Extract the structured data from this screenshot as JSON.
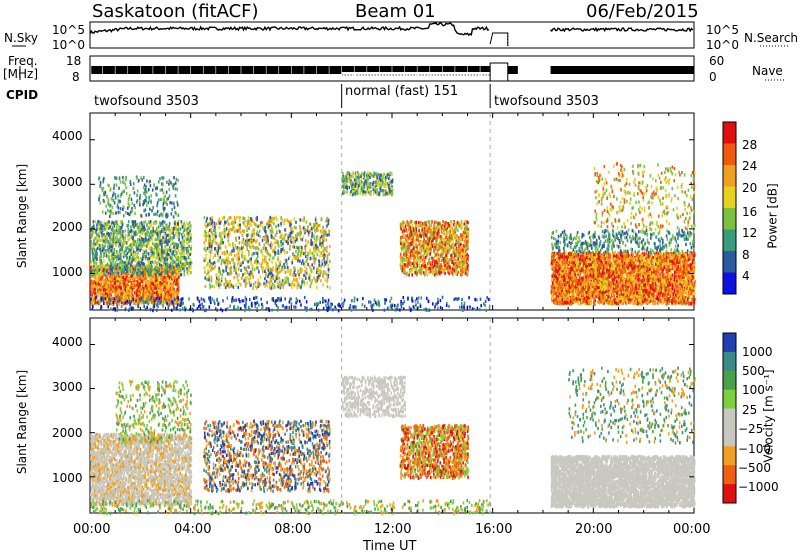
{
  "header": {
    "radar": "Saskatoon (fitACF)",
    "beam": "Beam 01",
    "date": "06/Feb/2015"
  },
  "left_labels": {
    "nsky": "N.Sky",
    "freq": "Freq.",
    "freq_unit": "[MHz]",
    "cpid": "CPID"
  },
  "right_labels": {
    "nsearch": "N.Search",
    "nave": "Nave"
  },
  "axes": {
    "noise_ticks_left": [
      "10^5",
      "10^0"
    ],
    "noise_ticks_right": [
      "10^5",
      "10^0"
    ],
    "freq_ticks": [
      "18",
      "8"
    ],
    "nave_ticks": [
      "60",
      "0"
    ],
    "range_ticks": [
      "1000",
      "2000",
      "3000",
      "4000"
    ],
    "time_ticks": [
      "00:00",
      "04:00",
      "08:00",
      "12:00",
      "16:00",
      "20:00",
      "00:00"
    ],
    "ylabel": "Slant Range [km]",
    "xlabel": "Time UT"
  },
  "cpid_segments": [
    {
      "label": "twofsound 3503",
      "start_hour": 0.0,
      "end_hour": 10.0
    },
    {
      "label": "normal (fast) 151",
      "start_hour": 10.0,
      "end_hour": 15.9
    },
    {
      "label": "twofsound 3503",
      "start_hour": 15.9,
      "end_hour": 24.0
    }
  ],
  "colorbars": {
    "power": {
      "label": "Power [dB]",
      "ticks": [
        "28",
        "24",
        "20",
        "16",
        "12",
        "8",
        "4"
      ],
      "colors": [
        "#e01010",
        "#f05a10",
        "#f0a020",
        "#e6d020",
        "#7cc040",
        "#3a9a7a",
        "#2a5aa0",
        "#1010e0"
      ]
    },
    "velocity": {
      "label": "Velocity [m s⁻¹]",
      "ticks": [
        "1000",
        "500",
        "100",
        "25",
        "−25",
        "−100",
        "−500",
        "−1000"
      ],
      "colors": [
        "#2040b0",
        "#3a8a8a",
        "#4aa04a",
        "#7cd040",
        "#c8c8c0",
        "#c8c8c0",
        "#f0a020",
        "#f06010",
        "#e01010"
      ]
    }
  },
  "chart_data": {
    "type": "heatmap",
    "title": "Saskatoon (fitACF) Beam 01 06/Feb/2015",
    "xlabel": "Time UT",
    "ylabel": "Slant Range [km]",
    "xlim_hours": [
      0,
      24
    ],
    "ylim_km": [
      180,
      4600
    ],
    "panels": [
      "Power [dB]",
      "Velocity [m s⁻¹]"
    ],
    "data_gaps_hours": [
      [
        15.9,
        18.3
      ]
    ],
    "notes_regions": [
      {
        "hours": [
          0,
          4
        ],
        "range_km": [
          400,
          1600
        ],
        "power_db": "16-28"
      },
      {
        "hours": [
          10,
          12
        ],
        "range_km": [
          2800,
          3200
        ],
        "power_db": "8-16"
      },
      {
        "hours": [
          12.5,
          15
        ],
        "range_km": [
          1000,
          2200
        ],
        "power_db": "16-28"
      },
      {
        "hours": [
          18.3,
          24
        ],
        "range_km": [
          300,
          1500
        ],
        "power_db": "16-28"
      }
    ]
  }
}
